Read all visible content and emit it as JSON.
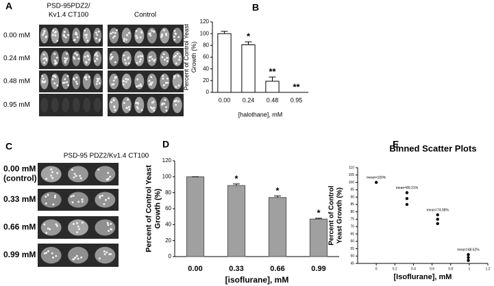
{
  "figure": {
    "panel_a": {
      "label": "A",
      "header_left": [
        "PSD-95PDZ2/",
        "Kv1.4 CT100"
      ],
      "header_right": "Control",
      "rows": [
        "0.00 mM",
        "0.24 mM",
        "0.48 mM",
        "0.95 mM"
      ]
    },
    "panel_c": {
      "label": "C",
      "header": "PSD-95 PDZ2/Kv1.4 CT100",
      "rows": [
        [
          "0.00 mM",
          "(control)"
        ],
        [
          "0.33 mM"
        ],
        [
          "0.66 mM"
        ],
        [
          "0.99 mM"
        ]
      ]
    }
  },
  "chart_data": [
    {
      "type": "bar",
      "panel": "B",
      "ylabel": [
        "Percent of Control Yeast",
        "Growth (%)"
      ],
      "xlabel": "[halothane], mM",
      "categories": [
        "0.00",
        "0.24",
        "0.48",
        "0.95"
      ],
      "values": [
        100,
        81,
        19,
        0
      ],
      "errors": [
        4,
        5,
        7,
        0
      ],
      "annotations": [
        null,
        "*",
        "**",
        "**"
      ],
      "color": "#ffffff",
      "edgecolor": "#000000",
      "ylim": [
        0,
        120
      ],
      "yticks": [
        0,
        20,
        40,
        60,
        80,
        100,
        120
      ]
    },
    {
      "type": "bar",
      "panel": "D",
      "ylabel": [
        "Percent of Control Yeast",
        "Growth (%)"
      ],
      "xlabel": "[isoflurane], mM",
      "categories": [
        "0.00",
        "0.33",
        "0.66",
        "0.99"
      ],
      "values": [
        100,
        89,
        74,
        47
      ],
      "errors": [
        0,
        2,
        2,
        1
      ],
      "annotations": [
        null,
        "*",
        "*",
        "*"
      ],
      "color": "#a0a0a0",
      "edgecolor": "#555555",
      "ylim": [
        0,
        120
      ],
      "yticks": [
        0,
        20,
        40,
        60,
        80,
        100,
        120
      ]
    },
    {
      "type": "scatter",
      "panel": "E",
      "title": "Binned Scatter Plots",
      "ylabel": [
        "Percent of Control",
        "Yeast Growth (%)"
      ],
      "xlabel": "[Isoflurane], mM",
      "x": [
        0,
        0.33,
        0.33,
        0.33,
        0.66,
        0.66,
        0.66,
        0.99,
        0.99,
        0.99
      ],
      "y": [
        100,
        93,
        89,
        85,
        78,
        75,
        72,
        51,
        49,
        47
      ],
      "annotations": [
        "mean=100%",
        "mean=89.21%",
        "mean=74.98%",
        "mean=48.62%"
      ],
      "color": "#000000",
      "xlim": [
        -0.2,
        1.2
      ],
      "xticks": [
        0,
        0.2,
        0.4,
        0.6,
        0.8,
        1,
        1.2
      ],
      "ylim": [
        45,
        110
      ],
      "yticks": [
        45,
        50,
        55,
        60,
        65,
        70,
        75,
        80,
        85,
        90,
        95,
        100,
        105,
        110
      ]
    }
  ]
}
